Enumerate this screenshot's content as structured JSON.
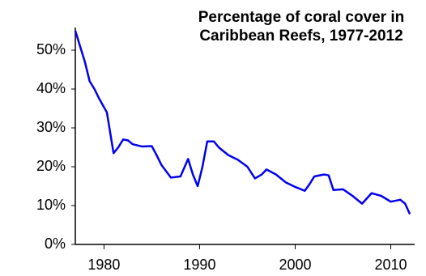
{
  "chart_data": {
    "type": "line",
    "title": [
      "Percentage of coral cover in",
      "Caribbean Reefs, 1977-2012"
    ],
    "x": [
      1977,
      1977.5,
      1978,
      1978.5,
      1979,
      1979.5,
      1980.3,
      1980.7,
      1981,
      1981.5,
      1982,
      1982.5,
      1983,
      1984,
      1985,
      1985.5,
      1986,
      1987,
      1988,
      1988.8,
      1989.3,
      1989.8,
      1990.3,
      1990.8,
      1991.5,
      1992,
      1993,
      1994,
      1995,
      1995.8,
      1996.5,
      1997,
      1998,
      1999,
      2000,
      2001,
      2001.5,
      2002,
      2003,
      2003.5,
      2004,
      2005,
      2006,
      2007,
      2008,
      2009,
      2010,
      2011,
      2011.5,
      2012
    ],
    "series": [
      {
        "color": "#0000ee",
        "values": [
          55,
          51,
          47,
          42,
          40,
          37.5,
          34,
          28,
          23.5,
          25,
          27,
          26.8,
          25.8,
          25.2,
          25.3,
          23,
          20.5,
          17.2,
          17.5,
          22,
          18,
          15,
          20,
          26.5,
          26.5,
          25,
          23,
          21.8,
          20,
          17,
          18,
          19.3,
          18,
          16,
          14.8,
          13.8,
          15.5,
          17.5,
          18,
          17.8,
          14,
          14.2,
          12.5,
          10.5,
          13.2,
          12.5,
          11,
          11.5,
          10.5,
          7.8
        ]
      }
    ],
    "xlim": [
      1977,
      2012.5
    ],
    "xticks": [
      1980,
      1990,
      2000,
      2010
    ],
    "ylim": [
      0,
      55
    ],
    "yticks": [
      {
        "value": 0,
        "label": "0%"
      },
      {
        "value": 10,
        "label": "10%"
      },
      {
        "value": 20,
        "label": "20%"
      },
      {
        "value": 30,
        "label": "30%"
      },
      {
        "value": 40,
        "label": "40%"
      },
      {
        "value": 50,
        "label": "50%"
      }
    ]
  }
}
